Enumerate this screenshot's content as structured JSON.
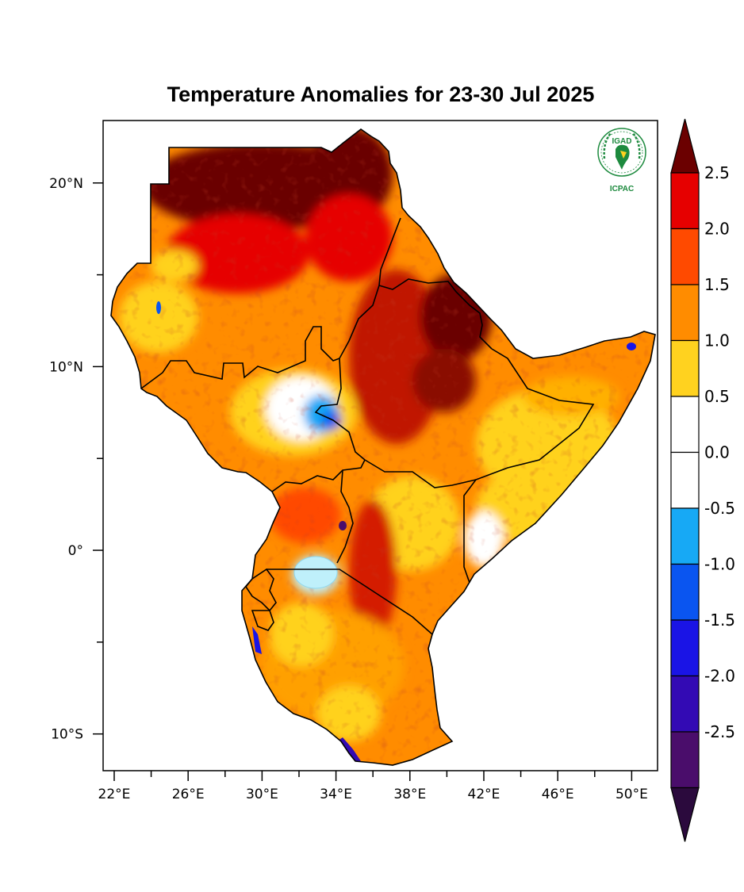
{
  "title": "Temperature Anomalies for 23-30 Jul 2025",
  "logo": {
    "top_text": "IGAD",
    "bottom_text": "ICPAC",
    "color": "#1d8a3e",
    "icon": "igad-icpac-logo"
  },
  "axes": {
    "lon_ticks": [
      {
        "value": 22,
        "label": "22°E"
      },
      {
        "value": 26,
        "label": "26°E"
      },
      {
        "value": 30,
        "label": "30°E"
      },
      {
        "value": 34,
        "label": "34°E"
      },
      {
        "value": 38,
        "label": "38°E"
      },
      {
        "value": 42,
        "label": "42°E"
      },
      {
        "value": 46,
        "label": "46°E"
      },
      {
        "value": 50,
        "label": "50°E"
      }
    ],
    "lat_ticks": [
      {
        "value": 20,
        "label": "20°N"
      },
      {
        "value": 10,
        "label": "10°N"
      },
      {
        "value": 0,
        "label": "0°"
      },
      {
        "value": -10,
        "label": "10°S"
      }
    ],
    "lon_range": [
      21.4,
      51.4
    ],
    "lat_range": [
      -12.0,
      23.4
    ]
  },
  "colorbar": {
    "labels": [
      "2.5",
      "2.0",
      "1.5",
      "1.0",
      "0.5",
      "0.0",
      "-0.5",
      "-1.0",
      "-1.5",
      "-2.0",
      "-2.5"
    ],
    "colors_top_to_bottom": [
      "#6b0000",
      "#e60000",
      "#ff4a00",
      "#ff8c00",
      "#ffd21f",
      "#ffffff",
      "#ffffff",
      "#17a9f5",
      "#0a55f0",
      "#1a14e6",
      "#330ab4",
      "#4a0d6b",
      "#2b0a3d"
    ]
  }
}
